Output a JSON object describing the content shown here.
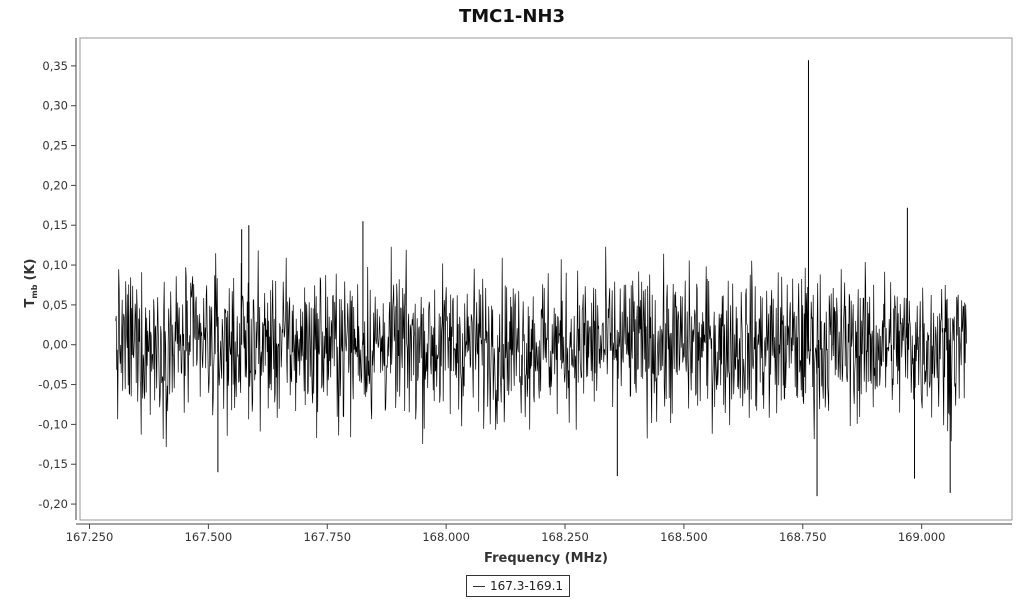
{
  "chart_data": {
    "type": "line",
    "title": "TMC1-NH3",
    "xlabel": "Frequency (MHz)",
    "ylabel_main": "T",
    "ylabel_sub": "mb",
    "ylabel_unit": "(K)",
    "xlim": [
      167.23,
      169.19
    ],
    "ylim": [
      -0.22,
      0.385
    ],
    "xticks": [
      167.25,
      167.5,
      167.75,
      168.0,
      168.25,
      168.5,
      168.75,
      169.0
    ],
    "xtick_labels": [
      "167.250",
      "167.500",
      "167.750",
      "168.000",
      "168.250",
      "168.500",
      "168.750",
      "169.000"
    ],
    "yticks": [
      -0.2,
      -0.15,
      -0.1,
      -0.05,
      0.0,
      0.05,
      0.1,
      0.15,
      0.2,
      0.25,
      0.3,
      0.35
    ],
    "ytick_labels": [
      "-0,20",
      "-0,15",
      "-0,10",
      "-0,05",
      "0,00",
      "0,05",
      "0,10",
      "0,15",
      "0,20",
      "0,25",
      "0,30",
      "0,35"
    ],
    "grid": false,
    "legend_position": "bottom-center",
    "series": [
      {
        "name": "167.3-169.1",
        "color": "#000000",
        "x_start": 167.305,
        "x_end": 169.095,
        "noise_sd": 0.045,
        "spikes": [
          {
            "x": 167.57,
            "y": 0.145
          },
          {
            "x": 167.585,
            "y": 0.15
          },
          {
            "x": 167.825,
            "y": 0.155
          },
          {
            "x": 168.762,
            "y": 0.357
          },
          {
            "x": 168.97,
            "y": 0.172
          },
          {
            "x": 167.52,
            "y": -0.16
          },
          {
            "x": 168.36,
            "y": -0.165
          },
          {
            "x": 168.78,
            "y": -0.19
          },
          {
            "x": 168.985,
            "y": -0.168
          },
          {
            "x": 169.06,
            "y": -0.186
          }
        ]
      }
    ]
  }
}
